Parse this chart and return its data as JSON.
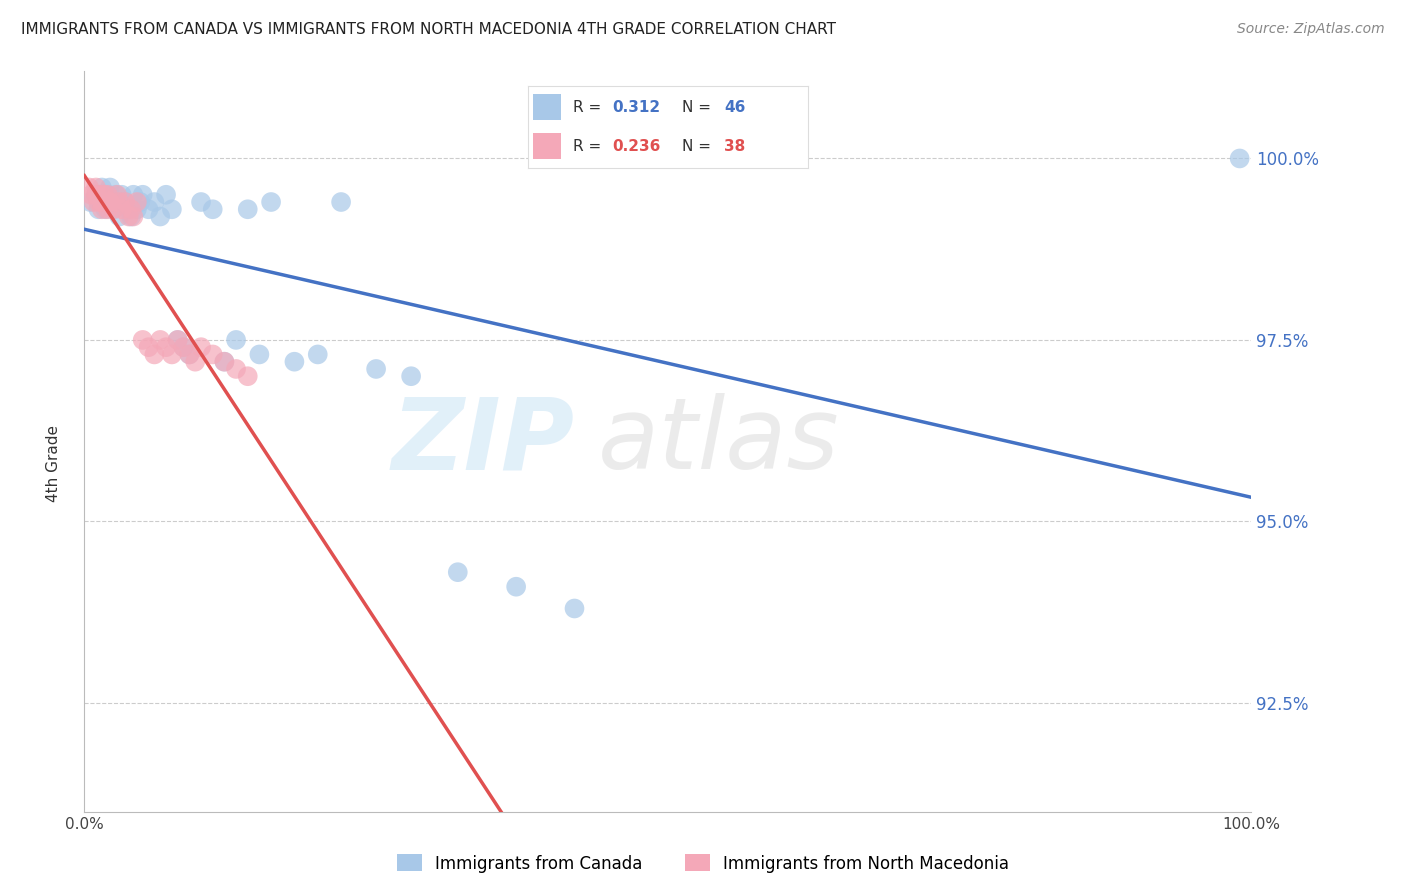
{
  "title": "IMMIGRANTS FROM CANADA VS IMMIGRANTS FROM NORTH MACEDONIA 4TH GRADE CORRELATION CHART",
  "source": "Source: ZipAtlas.com",
  "ylabel": "4th Grade",
  "yticks": [
    92.5,
    95.0,
    97.5,
    100.0
  ],
  "ytick_labels": [
    "92.5%",
    "95.0%",
    "97.5%",
    "100.0%"
  ],
  "xlim": [
    0,
    1
  ],
  "ylim": [
    91.0,
    101.2
  ],
  "legend_blue_R": "0.312",
  "legend_blue_N": "46",
  "legend_pink_R": "0.236",
  "legend_pink_N": "38",
  "blue_color": "#a8c8e8",
  "pink_color": "#f4a8b8",
  "blue_line_color": "#4472c4",
  "pink_line_color": "#e05050",
  "watermark_zip": "ZIP",
  "watermark_atlas": "atlas",
  "legend_label_blue": "Immigrants from Canada",
  "legend_label_pink": "Immigrants from North Macedonia",
  "blue_scatter_x": [
    0.005,
    0.01,
    0.012,
    0.015,
    0.015,
    0.017,
    0.018,
    0.02,
    0.02,
    0.022,
    0.025,
    0.027,
    0.03,
    0.03,
    0.032,
    0.035,
    0.038,
    0.04,
    0.042,
    0.045,
    0.048,
    0.05,
    0.055,
    0.06,
    0.065,
    0.07,
    0.075,
    0.08,
    0.085,
    0.09,
    0.1,
    0.11,
    0.12,
    0.13,
    0.14,
    0.15,
    0.16,
    0.18,
    0.2,
    0.22,
    0.25,
    0.28,
    0.32,
    0.37,
    0.42,
    0.99
  ],
  "blue_scatter_y": [
    99.4,
    99.5,
    99.3,
    99.6,
    99.4,
    99.5,
    99.3,
    99.5,
    99.4,
    99.6,
    99.3,
    99.5,
    99.4,
    99.2,
    99.5,
    99.4,
    99.3,
    99.2,
    99.5,
    99.3,
    99.4,
    99.5,
    99.3,
    99.4,
    99.2,
    99.5,
    99.3,
    97.5,
    97.4,
    97.3,
    99.4,
    99.3,
    97.2,
    97.5,
    99.3,
    97.3,
    99.4,
    97.2,
    97.3,
    99.4,
    97.1,
    97.0,
    94.3,
    94.1,
    93.8,
    100.0
  ],
  "pink_scatter_x": [
    0.004,
    0.006,
    0.008,
    0.01,
    0.01,
    0.012,
    0.014,
    0.015,
    0.015,
    0.017,
    0.018,
    0.02,
    0.02,
    0.022,
    0.025,
    0.028,
    0.03,
    0.032,
    0.035,
    0.038,
    0.04,
    0.042,
    0.045,
    0.05,
    0.055,
    0.06,
    0.065,
    0.07,
    0.075,
    0.08,
    0.085,
    0.09,
    0.095,
    0.1,
    0.11,
    0.12,
    0.13,
    0.14
  ],
  "pink_scatter_y": [
    99.6,
    99.5,
    99.4,
    99.6,
    99.5,
    99.4,
    99.5,
    99.4,
    99.3,
    99.5,
    99.4,
    99.5,
    99.3,
    99.4,
    99.3,
    99.5,
    99.4,
    99.3,
    99.4,
    99.2,
    99.3,
    99.2,
    99.4,
    97.5,
    97.4,
    97.3,
    97.5,
    97.4,
    97.3,
    97.5,
    97.4,
    97.3,
    97.2,
    97.4,
    97.3,
    97.2,
    97.1,
    97.0
  ]
}
